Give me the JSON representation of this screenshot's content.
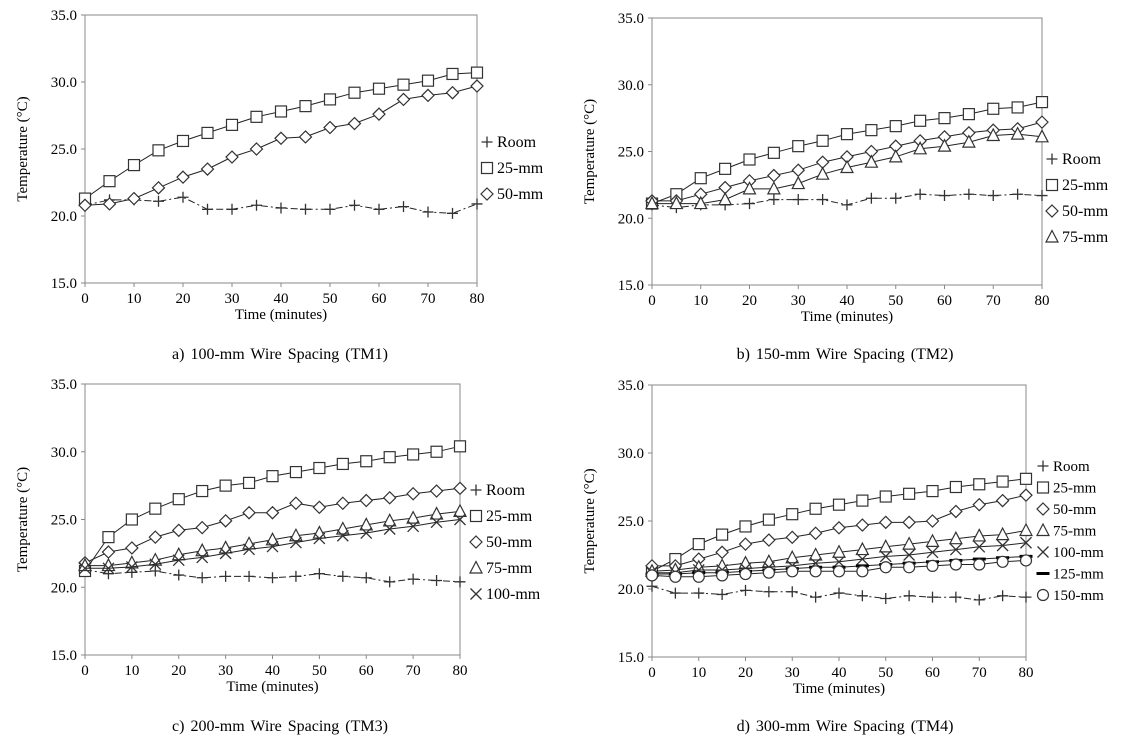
{
  "chart_data": [
    {
      "type": "line",
      "caption": "a) 100-mm Wire Spacing (TM1)",
      "xlabel": "Time (minutes)",
      "ylabel": "Temperature (°C)",
      "xlim": [
        0,
        80
      ],
      "ylim": [
        15,
        35
      ],
      "xticks": [
        "0",
        "10",
        "20",
        "30",
        "40",
        "50",
        "60",
        "70",
        "80"
      ],
      "yticks": [
        "15.0",
        "20.0",
        "25.0",
        "30.0",
        "35.0"
      ],
      "grid": false,
      "legend": "right",
      "x": [
        0,
        5,
        10,
        15,
        20,
        25,
        30,
        35,
        40,
        45,
        50,
        55,
        60,
        65,
        70,
        75,
        80
      ],
      "series": [
        {
          "name": "Room",
          "marker": "plus",
          "dash": true,
          "values": [
            20.8,
            21.2,
            21.2,
            21.1,
            21.4,
            20.5,
            20.5,
            20.8,
            20.6,
            20.5,
            20.5,
            20.8,
            20.5,
            20.7,
            20.3,
            20.2,
            20.9
          ]
        },
        {
          "name": "25-mm",
          "marker": "square",
          "dash": false,
          "values": [
            21.3,
            22.6,
            23.8,
            24.9,
            25.6,
            26.2,
            26.8,
            27.4,
            27.8,
            28.2,
            28.7,
            29.2,
            29.5,
            29.8,
            30.1,
            30.6,
            30.7
          ]
        },
        {
          "name": "50-mm",
          "marker": "diamond",
          "dash": false,
          "values": [
            20.8,
            20.9,
            21.3,
            22.1,
            22.9,
            23.5,
            24.4,
            25.0,
            25.8,
            25.9,
            26.6,
            26.9,
            27.6,
            28.7,
            29.0,
            29.2,
            29.7
          ]
        }
      ]
    },
    {
      "type": "line",
      "caption": "b) 150-mm Wire Spacing (TM2)",
      "xlabel": "Time (minutes)",
      "ylabel": "Temperature (°C)",
      "xlim": [
        0,
        80
      ],
      "ylim": [
        15,
        35
      ],
      "xticks": [
        "0",
        "10",
        "20",
        "30",
        "40",
        "50",
        "60",
        "70",
        "80"
      ],
      "yticks": [
        "15.0",
        "20.0",
        "25.0",
        "30.0",
        "35.0"
      ],
      "grid": false,
      "legend": "right",
      "x": [
        0,
        5,
        10,
        15,
        20,
        25,
        30,
        35,
        40,
        45,
        50,
        55,
        60,
        65,
        70,
        75,
        80
      ],
      "series": [
        {
          "name": "Room",
          "marker": "plus",
          "dash": true,
          "values": [
            21.0,
            20.8,
            21.0,
            21.0,
            21.1,
            21.4,
            21.4,
            21.4,
            21.0,
            21.5,
            21.5,
            21.8,
            21.7,
            21.8,
            21.7,
            21.8,
            21.7
          ]
        },
        {
          "name": "25-mm",
          "marker": "square",
          "dash": false,
          "values": [
            21.1,
            21.8,
            23.0,
            23.7,
            24.4,
            24.9,
            25.4,
            25.8,
            26.3,
            26.6,
            26.9,
            27.3,
            27.5,
            27.8,
            28.2,
            28.3,
            28.7
          ]
        },
        {
          "name": "50-mm",
          "marker": "diamond",
          "dash": false,
          "values": [
            21.3,
            21.3,
            21.8,
            22.3,
            22.8,
            23.2,
            23.6,
            24.2,
            24.6,
            25.0,
            25.4,
            25.8,
            26.1,
            26.4,
            26.6,
            26.7,
            27.2
          ]
        },
        {
          "name": "75-mm",
          "marker": "triangle",
          "dash": false,
          "values": [
            21.1,
            21.1,
            21.1,
            21.4,
            22.2,
            22.2,
            22.6,
            23.3,
            23.8,
            24.2,
            24.6,
            25.2,
            25.4,
            25.7,
            26.2,
            26.3,
            26.1
          ]
        }
      ]
    },
    {
      "type": "line",
      "caption": "c) 200-mm Wire Spacing (TM3)",
      "xlabel": "Time (minutes)",
      "ylabel": "Temperature (°C)",
      "xlim": [
        0,
        80
      ],
      "ylim": [
        15,
        35
      ],
      "xticks": [
        "0",
        "10",
        "20",
        "30",
        "40",
        "50",
        "60",
        "70",
        "80"
      ],
      "yticks": [
        "15.0",
        "20.0",
        "25.0",
        "30.0",
        "35.0"
      ],
      "grid": false,
      "legend": "right",
      "x": [
        0,
        5,
        10,
        15,
        20,
        25,
        30,
        35,
        40,
        45,
        50,
        55,
        60,
        65,
        70,
        75,
        80
      ],
      "series": [
        {
          "name": "Room",
          "marker": "plus",
          "dash": true,
          "values": [
            21.3,
            21.0,
            21.1,
            21.2,
            20.9,
            20.7,
            20.8,
            20.8,
            20.7,
            20.8,
            21.0,
            20.8,
            20.7,
            20.4,
            20.6,
            20.5,
            20.4
          ]
        },
        {
          "name": "25-mm",
          "marker": "square",
          "dash": false,
          "values": [
            21.2,
            23.7,
            25.0,
            25.8,
            26.5,
            27.1,
            27.5,
            27.7,
            28.2,
            28.5,
            28.8,
            29.1,
            29.3,
            29.6,
            29.8,
            30.0,
            30.4
          ]
        },
        {
          "name": "50-mm",
          "marker": "diamond",
          "dash": false,
          "values": [
            21.8,
            22.6,
            22.9,
            23.7,
            24.2,
            24.4,
            24.9,
            25.5,
            25.5,
            26.2,
            25.9,
            26.2,
            26.4,
            26.6,
            26.9,
            27.1,
            27.3
          ]
        },
        {
          "name": "75-mm",
          "marker": "triangle",
          "dash": false,
          "values": [
            21.6,
            21.6,
            21.8,
            22.0,
            22.4,
            22.7,
            22.9,
            23.2,
            23.5,
            23.8,
            24.0,
            24.3,
            24.6,
            24.9,
            25.1,
            25.4,
            25.6
          ]
        },
        {
          "name": "100-mm",
          "marker": "x",
          "dash": false,
          "values": [
            21.4,
            21.4,
            21.5,
            21.7,
            22.0,
            22.2,
            22.5,
            22.8,
            23.0,
            23.3,
            23.6,
            23.8,
            24.0,
            24.3,
            24.5,
            24.8,
            25.0
          ]
        }
      ]
    },
    {
      "type": "line",
      "caption": "d) 300-mm Wire Spacing (TM4)",
      "xlabel": "Time (minutes)",
      "ylabel": "Temperature (°C)",
      "xlim": [
        0,
        80
      ],
      "ylim": [
        15,
        35
      ],
      "xticks": [
        "0",
        "10",
        "20",
        "30",
        "40",
        "50",
        "60",
        "70",
        "80"
      ],
      "yticks": [
        "15.0",
        "20.0",
        "25.0",
        "30.0",
        "35.0"
      ],
      "grid": false,
      "legend": "right",
      "x": [
        0,
        5,
        10,
        15,
        20,
        25,
        30,
        35,
        40,
        45,
        50,
        55,
        60,
        65,
        70,
        75,
        80
      ],
      "series": [
        {
          "name": "Room",
          "marker": "plus",
          "dash": true,
          "values": [
            20.2,
            19.7,
            19.7,
            19.6,
            19.9,
            19.8,
            19.8,
            19.4,
            19.7,
            19.5,
            19.3,
            19.5,
            19.4,
            19.4,
            19.2,
            19.5,
            19.4
          ]
        },
        {
          "name": "25-mm",
          "marker": "square",
          "dash": false,
          "values": [
            21.3,
            22.2,
            23.3,
            24.0,
            24.6,
            25.1,
            25.5,
            25.9,
            26.2,
            26.5,
            26.8,
            27.0,
            27.2,
            27.5,
            27.7,
            27.9,
            28.1
          ]
        },
        {
          "name": "50-mm",
          "marker": "diamond",
          "dash": false,
          "values": [
            21.7,
            21.7,
            22.2,
            22.7,
            23.3,
            23.6,
            23.8,
            24.1,
            24.5,
            24.7,
            24.9,
            24.9,
            25.0,
            25.7,
            26.2,
            26.5,
            26.9
          ]
        },
        {
          "name": "75-mm",
          "marker": "triangle",
          "dash": false,
          "values": [
            21.3,
            21.4,
            21.6,
            21.7,
            21.9,
            22.0,
            22.3,
            22.5,
            22.7,
            22.9,
            23.1,
            23.3,
            23.5,
            23.7,
            23.9,
            24.0,
            24.3
          ]
        },
        {
          "name": "100-mm",
          "marker": "x",
          "dash": false,
          "values": [
            21.2,
            21.2,
            21.4,
            21.4,
            21.5,
            21.6,
            21.7,
            21.9,
            22.0,
            22.2,
            22.4,
            22.5,
            22.7,
            22.9,
            23.1,
            23.2,
            23.4
          ]
        },
        {
          "name": "125-mm",
          "marker": "dash",
          "dash": false,
          "values": [
            21.1,
            21.1,
            21.2,
            21.2,
            21.3,
            21.4,
            21.5,
            21.6,
            21.6,
            21.7,
            21.8,
            21.9,
            22.0,
            22.1,
            22.2,
            22.3,
            22.4
          ]
        },
        {
          "name": "150-mm",
          "marker": "circle",
          "dash": false,
          "values": [
            21.0,
            20.9,
            20.9,
            21.0,
            21.1,
            21.2,
            21.3,
            21.3,
            21.3,
            21.3,
            21.6,
            21.6,
            21.7,
            21.8,
            21.8,
            22.0,
            22.1
          ]
        }
      ]
    }
  ]
}
